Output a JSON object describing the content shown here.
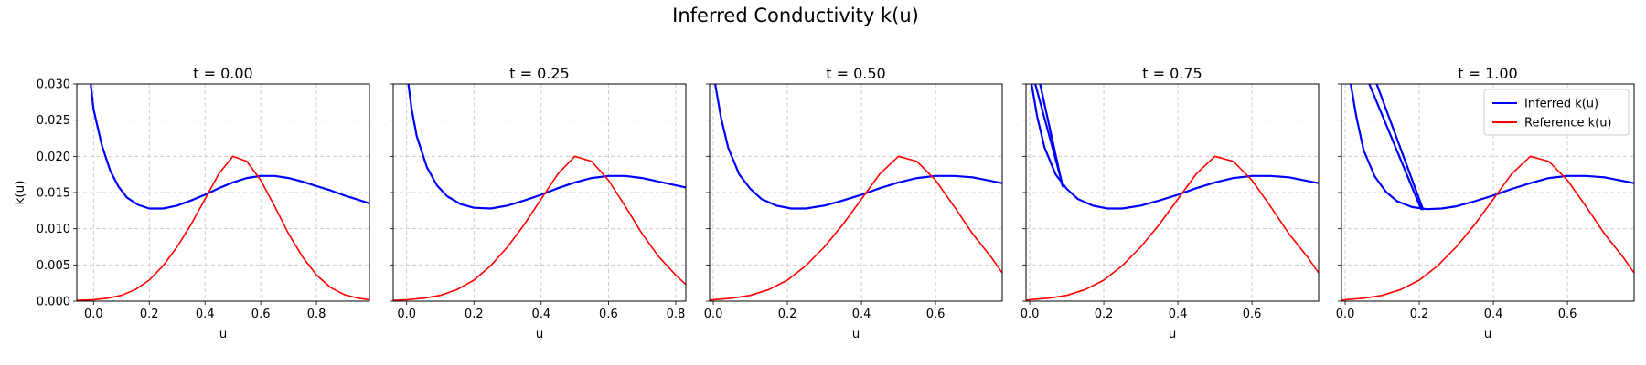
{
  "figure": {
    "title": "Inferred Conductivity k(u)"
  },
  "colors": {
    "inferred": "#0000ff",
    "reference": "#ff0000",
    "grid": "#b0b0b0"
  },
  "chart_data": [
    {
      "type": "line",
      "title": "t = 0.00",
      "xlabel": "u",
      "ylabel": "k(u)",
      "xlim": [
        -0.06,
        0.99
      ],
      "ylim": [
        0,
        0.03
      ],
      "grid": true,
      "xticks": [
        "0.0",
        "0.2",
        "0.4",
        "0.6",
        "0.8"
      ],
      "yticks": [
        "0.000",
        "0.005",
        "0.010",
        "0.015",
        "0.020",
        "0.025",
        "0.030"
      ],
      "series": [
        {
          "name": "Inferred k(u)",
          "role": "inferred",
          "x": [
            -0.01,
            0.0,
            0.03,
            0.06,
            0.09,
            0.12,
            0.16,
            0.2,
            0.25,
            0.3,
            0.35,
            0.4,
            0.45,
            0.5,
            0.55,
            0.6,
            0.65,
            0.7,
            0.75,
            0.8,
            0.85,
            0.9,
            0.95,
            0.99
          ],
          "y": [
            0.03,
            0.0265,
            0.0215,
            0.018,
            0.0158,
            0.0143,
            0.0133,
            0.0128,
            0.0128,
            0.0132,
            0.0139,
            0.0147,
            0.0156,
            0.0164,
            0.017,
            0.0173,
            0.0173,
            0.017,
            0.0165,
            0.0159,
            0.0153,
            0.0146,
            0.014,
            0.0135
          ]
        },
        {
          "name": "Reference k(u)",
          "role": "reference",
          "x": [
            -0.06,
            0.0,
            0.05,
            0.1,
            0.15,
            0.2,
            0.25,
            0.3,
            0.35,
            0.4,
            0.45,
            0.5,
            0.55,
            0.6,
            0.65,
            0.7,
            0.75,
            0.8,
            0.85,
            0.9,
            0.95,
            0.99
          ],
          "y": [
            0.0001,
            0.0002,
            0.0004,
            0.0008,
            0.0016,
            0.0029,
            0.0049,
            0.0075,
            0.0106,
            0.0141,
            0.0176,
            0.02,
            0.0193,
            0.0167,
            0.0131,
            0.0093,
            0.0061,
            0.0036,
            0.0019,
            0.0009,
            0.0004,
            0.0002
          ]
        }
      ]
    },
    {
      "type": "line",
      "title": "t = 0.25",
      "xlabel": "u",
      "ylabel": "",
      "xlim": [
        -0.04,
        0.83
      ],
      "ylim": [
        0,
        0.03
      ],
      "grid": true,
      "xticks": [
        "0.0",
        "0.2",
        "0.4",
        "0.6",
        "0.8"
      ],
      "yticks": [],
      "series": [
        {
          "name": "Inferred k(u)",
          "role": "inferred",
          "x": [
            0.005,
            0.015,
            0.03,
            0.06,
            0.09,
            0.12,
            0.16,
            0.2,
            0.25,
            0.3,
            0.35,
            0.4,
            0.45,
            0.5,
            0.55,
            0.6,
            0.65,
            0.7,
            0.75,
            0.8,
            0.83
          ],
          "y": [
            0.03,
            0.0265,
            0.0228,
            0.0185,
            0.016,
            0.0145,
            0.0134,
            0.0129,
            0.0128,
            0.0132,
            0.0139,
            0.0147,
            0.0156,
            0.0164,
            0.017,
            0.0173,
            0.0173,
            0.017,
            0.0165,
            0.016,
            0.0157
          ]
        },
        {
          "name": "Reference k(u)",
          "role": "reference",
          "x": [
            -0.04,
            0.0,
            0.05,
            0.1,
            0.15,
            0.2,
            0.25,
            0.3,
            0.35,
            0.4,
            0.45,
            0.5,
            0.55,
            0.6,
            0.65,
            0.7,
            0.75,
            0.8,
            0.83
          ],
          "y": [
            0.0001,
            0.0002,
            0.0004,
            0.0008,
            0.0016,
            0.0029,
            0.0049,
            0.0075,
            0.0106,
            0.0141,
            0.0176,
            0.02,
            0.0193,
            0.0167,
            0.0131,
            0.0093,
            0.0061,
            0.0036,
            0.0023
          ]
        }
      ]
    },
    {
      "type": "line",
      "title": "t = 0.50",
      "xlabel": "u",
      "ylabel": "",
      "xlim": [
        -0.01,
        0.78
      ],
      "ylim": [
        0,
        0.03
      ],
      "grid": true,
      "xticks": [
        "0.0",
        "0.2",
        "0.4",
        "0.6"
      ],
      "yticks": [],
      "series": [
        {
          "name": "Inferred k(u)",
          "role": "inferred",
          "x": [
            0.005,
            0.02,
            0.04,
            0.07,
            0.1,
            0.13,
            0.17,
            0.21,
            0.25,
            0.3,
            0.35,
            0.4,
            0.45,
            0.5,
            0.55,
            0.6,
            0.65,
            0.7,
            0.75,
            0.78
          ],
          "y": [
            0.03,
            0.0255,
            0.0212,
            0.0175,
            0.0155,
            0.0141,
            0.0132,
            0.0128,
            0.0128,
            0.0132,
            0.0139,
            0.0147,
            0.0156,
            0.0164,
            0.017,
            0.0173,
            0.0173,
            0.0171,
            0.0166,
            0.0163
          ]
        },
        {
          "name": "Reference k(u)",
          "role": "reference",
          "x": [
            -0.01,
            0.0,
            0.05,
            0.1,
            0.15,
            0.2,
            0.25,
            0.3,
            0.35,
            0.4,
            0.45,
            0.5,
            0.55,
            0.6,
            0.65,
            0.7,
            0.75,
            0.78
          ],
          "y": [
            0.0001,
            0.0002,
            0.0004,
            0.0008,
            0.0016,
            0.0029,
            0.0049,
            0.0075,
            0.0106,
            0.0141,
            0.0176,
            0.02,
            0.0193,
            0.0167,
            0.0131,
            0.0093,
            0.0061,
            0.0039
          ]
        }
      ]
    },
    {
      "type": "line",
      "title": "t = 0.75",
      "xlabel": "u",
      "ylabel": "",
      "xlim": [
        -0.01,
        0.78
      ],
      "ylim": [
        0,
        0.03
      ],
      "grid": true,
      "xticks": [
        "0.0",
        "0.2",
        "0.4",
        "0.6"
      ],
      "yticks": [],
      "series": [
        {
          "name": "Inferred k(u)",
          "role": "inferred",
          "x": [
            0.005,
            0.02,
            0.04,
            0.07,
            0.1,
            0.13,
            0.17,
            0.21,
            0.25,
            0.3,
            0.35,
            0.4,
            0.45,
            0.5,
            0.55,
            0.6,
            0.65,
            0.7,
            0.75,
            0.78
          ],
          "y": [
            0.03,
            0.0255,
            0.0212,
            0.0175,
            0.0155,
            0.0141,
            0.0132,
            0.0128,
            0.0128,
            0.0132,
            0.0139,
            0.0147,
            0.0156,
            0.0164,
            0.017,
            0.0173,
            0.0173,
            0.0171,
            0.0166,
            0.0163
          ]
        },
        {
          "name": "Inferred k(u)",
          "role": "inferred",
          "x": [
            0.015,
            0.09
          ],
          "y": [
            0.03,
            0.0158
          ]
        },
        {
          "name": "Inferred k(u)",
          "role": "inferred",
          "x": [
            0.028,
            0.088
          ],
          "y": [
            0.03,
            0.016
          ]
        },
        {
          "name": "Reference k(u)",
          "role": "reference",
          "x": [
            -0.01,
            0.0,
            0.05,
            0.1,
            0.15,
            0.2,
            0.25,
            0.3,
            0.35,
            0.4,
            0.45,
            0.5,
            0.55,
            0.6,
            0.65,
            0.7,
            0.75,
            0.78
          ],
          "y": [
            0.0001,
            0.0002,
            0.0004,
            0.0008,
            0.0016,
            0.0029,
            0.0049,
            0.0075,
            0.0106,
            0.0141,
            0.0176,
            0.02,
            0.0193,
            0.0167,
            0.0131,
            0.0093,
            0.0061,
            0.0039
          ]
        }
      ]
    },
    {
      "type": "line",
      "title": "t = 1.00",
      "xlabel": "u",
      "ylabel": "",
      "xlim": [
        -0.01,
        0.78
      ],
      "ylim": [
        0,
        0.03
      ],
      "grid": true,
      "xticks": [
        "0.0",
        "0.2",
        "0.4",
        "0.6"
      ],
      "yticks": [],
      "legend": {
        "position": "top-right",
        "entries": [
          "Inferred k(u)",
          "Reference k(u)"
        ]
      },
      "series": [
        {
          "name": "Inferred k(u)",
          "role": "inferred",
          "x": [
            0.015,
            0.03,
            0.05,
            0.08,
            0.11,
            0.14,
            0.18,
            0.22,
            0.26,
            0.3,
            0.35,
            0.4,
            0.45,
            0.5,
            0.55,
            0.6,
            0.65,
            0.7,
            0.75,
            0.78
          ],
          "y": [
            0.03,
            0.0255,
            0.0208,
            0.0172,
            0.0151,
            0.0138,
            0.013,
            0.0127,
            0.0128,
            0.0131,
            0.0138,
            0.0146,
            0.0155,
            0.0163,
            0.017,
            0.0173,
            0.0173,
            0.0171,
            0.0166,
            0.0163
          ]
        },
        {
          "name": "Inferred k(u)",
          "role": "inferred",
          "x": [
            0.065,
            0.205
          ],
          "y": [
            0.03,
            0.0127
          ]
        },
        {
          "name": "Inferred k(u)",
          "role": "inferred",
          "x": [
            0.085,
            0.21
          ],
          "y": [
            0.03,
            0.0127
          ]
        },
        {
          "name": "Reference k(u)",
          "role": "reference",
          "x": [
            -0.01,
            0.0,
            0.05,
            0.1,
            0.15,
            0.2,
            0.25,
            0.3,
            0.35,
            0.4,
            0.45,
            0.5,
            0.55,
            0.6,
            0.65,
            0.7,
            0.75,
            0.78
          ],
          "y": [
            0.0001,
            0.0002,
            0.0004,
            0.0008,
            0.0016,
            0.0029,
            0.0049,
            0.0075,
            0.0106,
            0.0141,
            0.0176,
            0.02,
            0.0193,
            0.0167,
            0.0131,
            0.0093,
            0.0061,
            0.0039
          ]
        }
      ]
    }
  ]
}
